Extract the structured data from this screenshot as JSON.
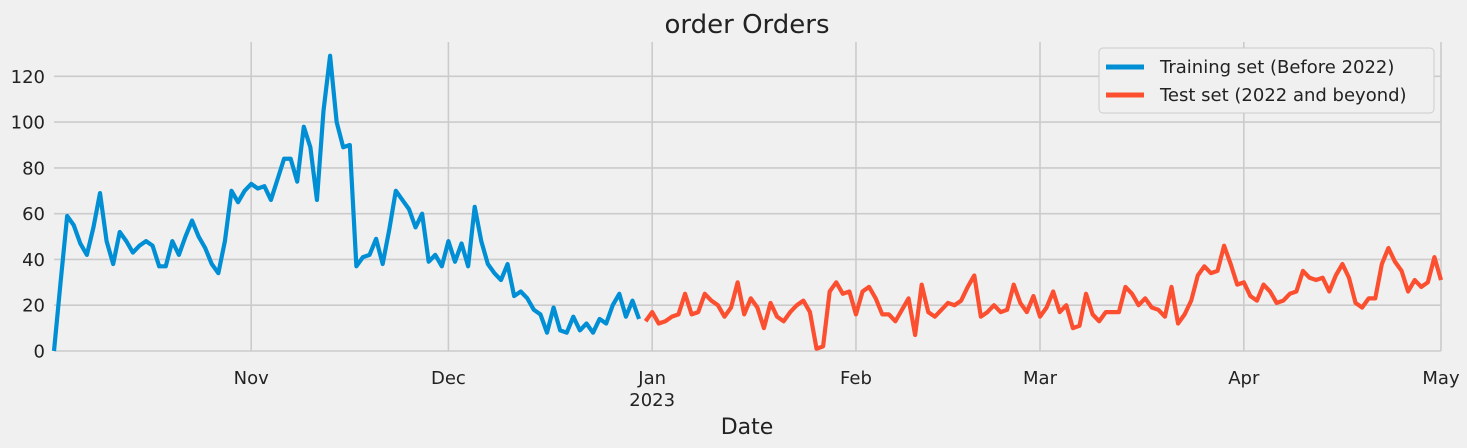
{
  "chart_data": {
    "type": "line",
    "title": "order Orders",
    "xlabel": "Date",
    "ylabel": "",
    "ylim": [
      0,
      135
    ],
    "y_ticks": [
      0,
      20,
      40,
      60,
      80,
      100,
      120
    ],
    "x_range": [
      "2022-10-02",
      "2023-05-01"
    ],
    "x_ticks": [
      {
        "date": "2022-11-01",
        "label": "Nov",
        "sublabel": ""
      },
      {
        "date": "2022-12-01",
        "label": "Dec",
        "sublabel": ""
      },
      {
        "date": "2023-01-01",
        "label": "Jan",
        "sublabel": "2023"
      },
      {
        "date": "2023-02-01",
        "label": "Feb",
        "sublabel": ""
      },
      {
        "date": "2023-03-01",
        "label": "Mar",
        "sublabel": ""
      },
      {
        "date": "2023-04-01",
        "label": "Apr",
        "sublabel": ""
      },
      {
        "date": "2023-05-01",
        "label": "May",
        "sublabel": ""
      }
    ],
    "grid": true,
    "legend_position": "top-right",
    "series": [
      {
        "name": "Training set (Before 2022)",
        "color": "#008fd5",
        "start_date": "2022-10-02",
        "values": [
          0,
          30,
          59,
          55,
          47,
          42,
          54,
          69,
          48,
          38,
          52,
          48,
          43,
          46,
          48,
          46,
          37,
          37,
          48,
          42,
          50,
          57,
          50,
          45,
          38,
          34,
          48,
          70,
          65,
          70,
          73,
          71,
          72,
          66,
          75,
          84,
          84,
          74,
          98,
          89,
          66,
          105,
          129,
          100,
          89,
          90,
          37,
          41,
          42,
          49,
          38,
          53,
          70,
          66,
          62,
          54,
          60,
          39,
          42,
          37,
          48,
          39,
          47,
          37,
          63,
          48,
          38,
          34,
          31,
          38,
          24,
          26,
          23,
          18,
          16,
          8,
          19,
          9,
          8,
          15,
          9,
          12,
          8,
          14,
          12,
          20,
          25,
          15,
          22,
          14
        ]
      },
      {
        "name": "Test set (2022 and beyond)",
        "color": "#fc4f30",
        "start_date": "2022-12-31",
        "values": [
          13,
          17,
          12,
          13,
          15,
          16,
          25,
          16,
          17,
          25,
          22,
          20,
          15,
          19,
          30,
          16,
          23,
          19,
          10,
          21,
          15,
          13,
          17,
          20,
          22,
          17,
          1,
          2,
          26,
          30,
          25,
          26,
          16,
          26,
          28,
          23,
          16,
          16,
          13,
          18,
          23,
          7,
          29,
          17,
          15,
          18,
          21,
          20,
          22,
          28,
          33,
          15,
          17,
          20,
          17,
          18,
          29,
          21,
          17,
          24,
          15,
          19,
          26,
          17,
          20,
          10,
          11,
          25,
          16,
          13,
          17,
          17,
          17,
          28,
          25,
          20,
          23,
          19,
          18,
          15,
          28,
          12,
          16,
          22,
          33,
          37,
          34,
          35,
          46,
          38,
          29,
          30,
          24,
          22,
          29,
          26,
          21,
          22,
          25,
          26,
          35,
          32,
          31,
          32,
          26,
          33,
          38,
          32,
          21,
          19,
          23,
          23,
          38,
          45,
          39,
          35,
          26,
          31,
          28,
          30,
          41,
          31
        ]
      }
    ]
  }
}
